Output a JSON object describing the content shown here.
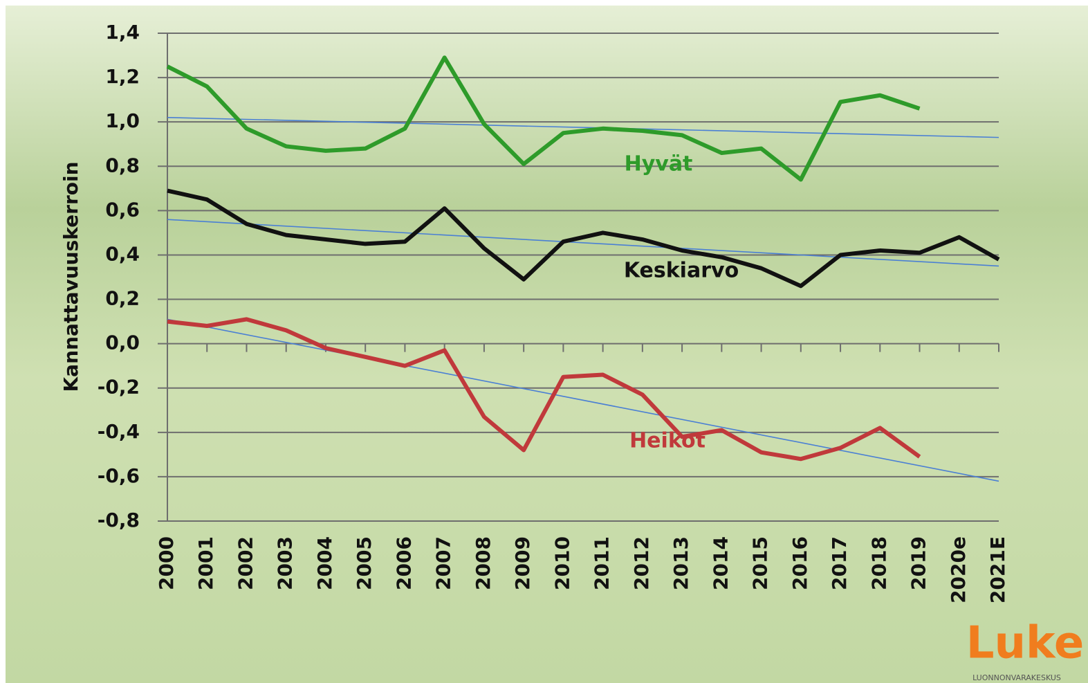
{
  "chart_data": {
    "type": "line",
    "y_label": "Kannattavuuskerroin",
    "categories": [
      "2000",
      "2001",
      "2002",
      "2003",
      "2004",
      "2005",
      "2006",
      "2007",
      "2008",
      "2009",
      "2010",
      "2011",
      "2012",
      "2013",
      "2014",
      "2015",
      "2016",
      "2017",
      "2018",
      "2019",
      "2020e",
      "2021E"
    ],
    "series": [
      {
        "name": "Hyvät",
        "color": "#2e9b2a",
        "values": [
          1.25,
          1.16,
          0.97,
          0.89,
          0.87,
          0.88,
          0.97,
          1.29,
          0.99,
          0.81,
          0.95,
          0.97,
          0.96,
          0.94,
          0.86,
          0.88,
          0.74,
          1.09,
          1.12,
          1.06,
          null,
          null
        ]
      },
      {
        "name": "Keskiarvo",
        "color": "#111111",
        "values": [
          0.69,
          0.65,
          0.54,
          0.49,
          0.47,
          0.45,
          0.46,
          0.61,
          0.43,
          0.29,
          0.46,
          0.5,
          0.47,
          0.42,
          0.39,
          0.34,
          0.26,
          0.4,
          0.42,
          0.41,
          0.48,
          0.38
        ]
      },
      {
        "name": "Heikot",
        "color": "#c0393b",
        "values": [
          0.1,
          0.08,
          0.11,
          0.06,
          -0.02,
          -0.06,
          -0.1,
          -0.03,
          -0.33,
          -0.48,
          -0.15,
          -0.14,
          -0.23,
          -0.42,
          -0.39,
          -0.49,
          -0.52,
          -0.47,
          -0.38,
          -0.51,
          null,
          null
        ]
      }
    ],
    "trendlines": [
      {
        "color": "#4a7fd4",
        "values": [
          1.02,
          0.93
        ]
      },
      {
        "color": "#4a7fd4",
        "values": [
          0.56,
          0.35
        ]
      },
      {
        "color": "#4a7fd4",
        "values": [
          0.11,
          -0.62
        ]
      }
    ],
    "ylim": [
      -0.8,
      1.4
    ],
    "yticks": [
      {
        "value": -0.8,
        "label": "-0,8"
      },
      {
        "value": -0.6,
        "label": "-0,6"
      },
      {
        "value": -0.4,
        "label": "-0,4"
      },
      {
        "value": -0.2,
        "label": "-0,2"
      },
      {
        "value": 0,
        "label": "0,0"
      },
      {
        "value": 0.2,
        "label": "0,2"
      },
      {
        "value": 0.4,
        "label": "0,4"
      },
      {
        "value": 0.6,
        "label": "0,6"
      },
      {
        "value": 0.8,
        "label": "0,8"
      },
      {
        "value": 1.0,
        "label": "1,0"
      },
      {
        "value": 1.2,
        "label": "1,2"
      },
      {
        "value": 1.4,
        "label": "1,4"
      }
    ],
    "grid": true
  },
  "logo": {
    "name": "Luke",
    "subtitle": "LUONNONVARAKESKUS"
  }
}
